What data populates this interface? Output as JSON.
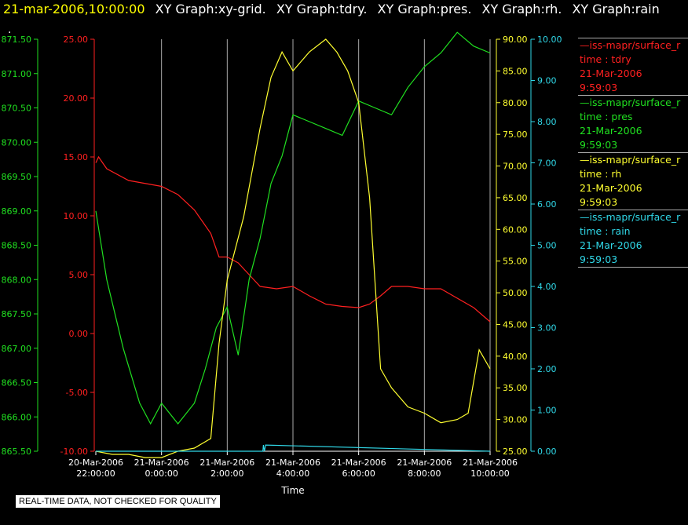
{
  "header": {
    "timestamp": "21-mar-2006,10:00:00",
    "graph_titles": [
      "XY Graph:xy-grid.",
      "XY Graph:tdry.",
      "XY Graph:pres.",
      "XY Graph:rh.",
      "XY Graph:rain"
    ]
  },
  "dot": ".",
  "disclaimer": "REAL-TIME DATA, NOT CHECKED FOR QUALITY",
  "colors": {
    "tdry": "#ff2020",
    "pres": "#20e020",
    "rh": "#ffff30",
    "rain": "#30d8e8",
    "grid": "#c8c8c8",
    "axis": "#ffffff"
  },
  "legend": [
    {
      "line": "—iss-mapr/surface_r",
      "field": "time : tdry",
      "date": "21-Mar-2006",
      "time": "9:59:03",
      "color": "#ff2020"
    },
    {
      "line": "—iss-mapr/surface_r",
      "field": "time : pres",
      "date": "21-Mar-2006",
      "time": "9:59:03",
      "color": "#20e020"
    },
    {
      "line": "—iss-mapr/surface_r",
      "field": "time : rh",
      "date": "21-Mar-2006",
      "time": "9:59:03",
      "color": "#ffff30"
    },
    {
      "line": "—iss-mapr/surface_r",
      "field": "time : rain",
      "date": "21-Mar-2006",
      "time": "9:59:03",
      "color": "#30d8e8"
    }
  ],
  "chart_data": {
    "type": "line",
    "xlabel": "Time",
    "x_ticks": [
      [
        "20-Mar-2006",
        "22:00:00"
      ],
      [
        "21-Mar-2006",
        "0:00:00"
      ],
      [
        "21-Mar-2006",
        "2:00:00"
      ],
      [
        "21-Mar-2006",
        "4:00:00"
      ],
      [
        "21-Mar-2006",
        "6:00:00"
      ],
      [
        "21-Mar-2006",
        "8:00:00"
      ],
      [
        "21-Mar-2006",
        "10:00:00"
      ]
    ],
    "xlim": [
      "2006-03-20 22:00",
      "2006-03-21 10:00"
    ],
    "axes": {
      "tdry": {
        "ylim": [
          -10,
          25
        ],
        "ticks": [
          "-10.00",
          "-5.00",
          "0.00",
          "5.00",
          "10.00",
          "15.00",
          "20.00",
          "25.00"
        ]
      },
      "pres": {
        "ylim": [
          865.5,
          871.5
        ],
        "ticks": [
          "865.50",
          "866.00",
          "866.50",
          "867.00",
          "867.50",
          "868.00",
          "868.50",
          "869.00",
          "869.50",
          "870.00",
          "870.50",
          "871.00",
          "871.50"
        ]
      },
      "rh": {
        "ylim": [
          25,
          90
        ],
        "ticks": [
          "25.00",
          "30.00",
          "35.00",
          "40.00",
          "45.00",
          "50.00",
          "55.00",
          "60.00",
          "65.00",
          "70.00",
          "75.00",
          "80.00",
          "85.00",
          "90.00"
        ]
      },
      "rain": {
        "ylim": [
          0,
          10
        ],
        "ticks": [
          "0.00",
          "1.00",
          "2.00",
          "3.00",
          "4.00",
          "5.00",
          "6.00",
          "7.00",
          "8.00",
          "9.00",
          "10.00"
        ]
      }
    },
    "series": [
      {
        "name": "tdry",
        "axis": "tdry",
        "x": [
          "20-Mar-2006 22:00",
          "20-Mar-2006 22:05",
          "20-Mar-2006 22:20",
          "20-Mar-2006 23:00",
          "21-Mar-2006 00:00",
          "21-Mar-2006 00:30",
          "21-Mar-2006 01:00",
          "21-Mar-2006 01:30",
          "21-Mar-2006 01:45",
          "21-Mar-2006 02:00",
          "21-Mar-2006 02:20",
          "21-Mar-2006 02:40",
          "21-Mar-2006 03:00",
          "21-Mar-2006 03:30",
          "21-Mar-2006 04:00",
          "21-Mar-2006 04:30",
          "21-Mar-2006 05:00",
          "21-Mar-2006 05:30",
          "21-Mar-2006 06:00",
          "21-Mar-2006 06:20",
          "21-Mar-2006 06:40",
          "21-Mar-2006 07:00",
          "21-Mar-2006 07:30",
          "21-Mar-2006 08:00",
          "21-Mar-2006 08:30",
          "21-Mar-2006 09:00",
          "21-Mar-2006 09:30",
          "21-Mar-2006 09:50",
          "21-Mar-2006 10:00"
        ],
        "y": [
          14.5,
          15.0,
          14.0,
          13.0,
          12.5,
          11.8,
          10.5,
          8.5,
          6.5,
          6.5,
          6.0,
          5.0,
          4.0,
          3.8,
          4.0,
          3.2,
          2.5,
          2.3,
          2.2,
          2.5,
          3.2,
          4.0,
          4.0,
          3.8,
          3.8,
          3.0,
          2.2,
          1.4,
          1.0
        ]
      },
      {
        "name": "pres",
        "axis": "pres",
        "x": [
          "20-Mar-2006 22:00",
          "20-Mar-2006 22:20",
          "20-Mar-2006 22:50",
          "20-Mar-2006 23:20",
          "20-Mar-2006 23:40",
          "21-Mar-2006 00:00",
          "21-Mar-2006 00:30",
          "21-Mar-2006 01:00",
          "21-Mar-2006 01:20",
          "21-Mar-2006 01:40",
          "21-Mar-2006 02:00",
          "21-Mar-2006 02:20",
          "21-Mar-2006 02:40",
          "21-Mar-2006 03:00",
          "21-Mar-2006 03:20",
          "21-Mar-2006 03:40",
          "21-Mar-2006 04:00",
          "21-Mar-2006 04:30",
          "21-Mar-2006 05:00",
          "21-Mar-2006 05:30",
          "21-Mar-2006 06:00",
          "21-Mar-2006 06:30",
          "21-Mar-2006 07:00",
          "21-Mar-2006 07:30",
          "21-Mar-2006 08:00",
          "21-Mar-2006 08:30",
          "21-Mar-2006 09:00",
          "21-Mar-2006 09:30",
          "21-Mar-2006 10:00"
        ],
        "y": [
          869.0,
          868.0,
          867.0,
          866.2,
          865.9,
          866.2,
          865.9,
          866.2,
          866.7,
          867.3,
          867.6,
          866.9,
          868.0,
          868.6,
          869.4,
          869.8,
          870.4,
          870.3,
          870.2,
          870.1,
          870.6,
          870.5,
          870.4,
          870.8,
          871.1,
          871.3,
          871.6,
          871.4,
          871.3
        ]
      },
      {
        "name": "rh",
        "axis": "rh",
        "x": [
          "20-Mar-2006 22:00",
          "20-Mar-2006 22:30",
          "20-Mar-2006 23:00",
          "20-Mar-2006 23:30",
          "21-Mar-2006 00:00",
          "21-Mar-2006 00:30",
          "21-Mar-2006 01:00",
          "21-Mar-2006 01:30",
          "21-Mar-2006 01:45",
          "21-Mar-2006 02:00",
          "21-Mar-2006 02:30",
          "21-Mar-2006 03:00",
          "21-Mar-2006 03:20",
          "21-Mar-2006 03:40",
          "21-Mar-2006 04:00",
          "21-Mar-2006 04:30",
          "21-Mar-2006 05:00",
          "21-Mar-2006 05:20",
          "21-Mar-2006 05:40",
          "21-Mar-2006 06:00",
          "21-Mar-2006 06:20",
          "21-Mar-2006 06:40",
          "21-Mar-2006 07:00",
          "21-Mar-2006 07:30",
          "21-Mar-2006 08:00",
          "21-Mar-2006 08:30",
          "21-Mar-2006 09:00",
          "21-Mar-2006 09:20",
          "21-Mar-2006 09:40",
          "21-Mar-2006 10:00"
        ],
        "y": [
          25.0,
          24.5,
          24.5,
          24.0,
          24.0,
          25.0,
          25.5,
          27.0,
          42.0,
          52.0,
          62.0,
          76.0,
          84.0,
          88.0,
          85.0,
          88.0,
          90.0,
          88.0,
          85.0,
          80.0,
          65.0,
          38.0,
          35.0,
          32.0,
          31.0,
          29.5,
          30.0,
          31.0,
          41.0,
          38.0
        ]
      },
      {
        "name": "rain",
        "axis": "rain",
        "x": [
          "20-Mar-2006 22:00",
          "21-Mar-2006 03:05",
          "21-Mar-2006 03:06",
          "21-Mar-2006 03:08",
          "21-Mar-2006 03:10",
          "21-Mar-2006 10:00"
        ],
        "y": [
          0,
          0,
          0.15,
          0,
          0.15,
          0
        ]
      }
    ]
  }
}
